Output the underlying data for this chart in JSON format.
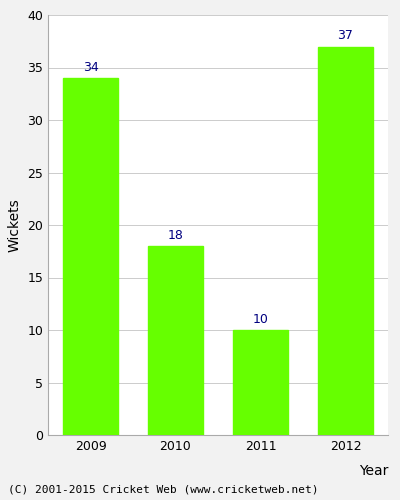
{
  "categories": [
    "2009",
    "2010",
    "2011",
    "2012"
  ],
  "values": [
    34,
    18,
    10,
    37
  ],
  "bar_color": "#66ff00",
  "label_color": "#000080",
  "xlabel": "Year",
  "ylabel": "Wickets",
  "ylim": [
    0,
    40
  ],
  "yticks": [
    0,
    5,
    10,
    15,
    20,
    25,
    30,
    35,
    40
  ],
  "label_fontsize": 9,
  "axis_label_fontsize": 10,
  "tick_fontsize": 9,
  "footnote": "(C) 2001-2015 Cricket Web (www.cricketweb.net)",
  "footnote_fontsize": 8,
  "background_color": "#f2f2f2",
  "plot_bg_color": "#ffffff",
  "bar_width": 0.65
}
